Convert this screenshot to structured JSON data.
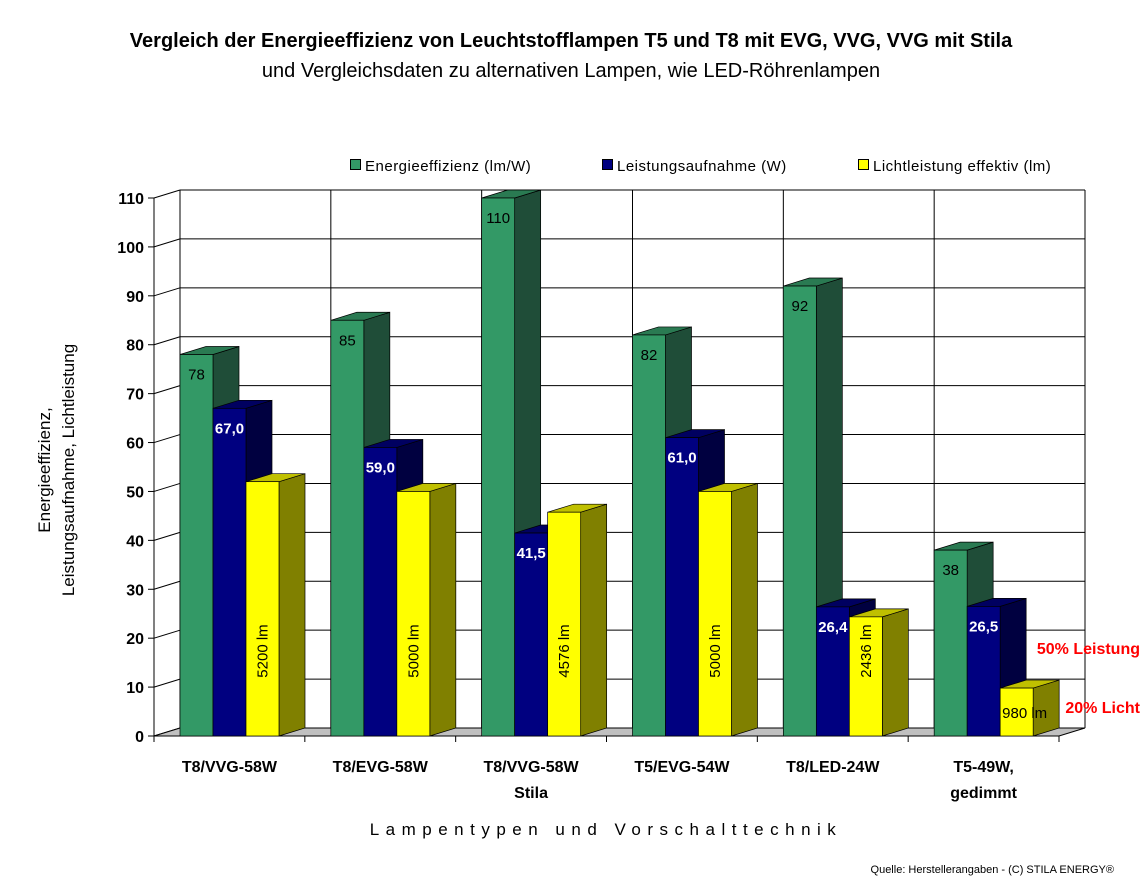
{
  "title": "Vergleich der Energieeffizienz von Leuchtstofflampen T5 und T8 mit EVG, VVG, VVG mit Stila",
  "subtitle": "und Vergleichsdaten zu alternativen Lampen, wie LED-Röhrenlampen",
  "source": "Quelle:  Herstellerangaben  - (C) STILA ENERGY®",
  "chart_data": {
    "type": "bar",
    "title": "Vergleich der Energieeffizienz von Leuchtstofflampen T5 und T8 mit EVG, VVG, VVG mit Stila",
    "subtitle": "und Vergleichsdaten zu alternativen Lampen, wie LED-Röhrenlampen",
    "xlabel": "Lampentypen und Vorschalttechnik",
    "ylabel": [
      "Energieeffizienz,",
      "Leistungsaufnahme, Lichtleistung"
    ],
    "ylim": [
      0,
      110
    ],
    "yticks": [
      0,
      10,
      20,
      30,
      40,
      50,
      60,
      70,
      80,
      90,
      100,
      110
    ],
    "grid": true,
    "legend_position": "top",
    "categories": [
      [
        "T8/VVG-58W"
      ],
      [
        "T8/EVG-58W"
      ],
      [
        "T8/VVG-58W",
        "Stila"
      ],
      [
        "T5/EVG-54W"
      ],
      [
        "T8/LED-24W"
      ],
      [
        "T5-49W,",
        "gedimmt"
      ]
    ],
    "series": [
      {
        "name": "Energieeffizienz (lm/W)",
        "color": "#339966",
        "values": [
          78,
          85,
          110,
          82,
          92,
          38
        ],
        "labels": [
          "78",
          "85",
          "110",
          "82",
          "92",
          "38"
        ]
      },
      {
        "name": "Leistungsaufnahme (W)",
        "color": "#000080",
        "values": [
          67.0,
          59.0,
          41.5,
          61.0,
          26.4,
          26.5
        ],
        "labels": [
          "67,0",
          "59,0",
          "41,5",
          "61,0",
          "26,4",
          "26,5"
        ]
      },
      {
        "name": "Lichtleistung effektiv (lm)",
        "color": "#ffff00",
        "values": [
          52,
          50,
          45.76,
          50,
          24.36,
          9.8
        ],
        "labels": [
          "5200 lm",
          "5000 lm",
          "4576 lm",
          "5000 lm",
          "2436 lm",
          "980 lm"
        ]
      }
    ],
    "annotations": [
      {
        "text": "50% Leistung",
        "color": "#ff0000"
      },
      {
        "text": "20% Licht",
        "color": "#ff0000"
      }
    ]
  }
}
